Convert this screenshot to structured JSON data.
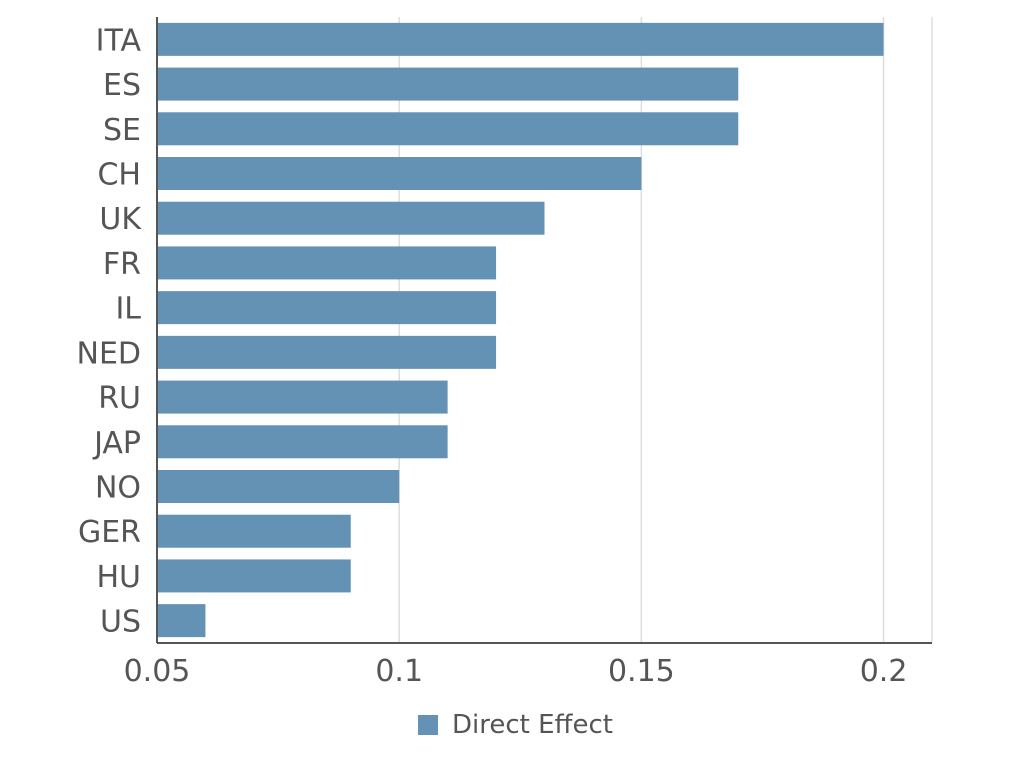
{
  "chart_data": {
    "type": "bar",
    "orientation": "horizontal",
    "categories": [
      "ITA",
      "ES",
      "SE",
      "CH",
      "UK",
      "FR",
      "IL",
      "NED",
      "RU",
      "JAP",
      "NO",
      "GER",
      "HU",
      "US"
    ],
    "series": [
      {
        "name": "Direct Effect",
        "values": [
          0.2,
          0.17,
          0.17,
          0.15,
          0.13,
          0.12,
          0.12,
          0.12,
          0.11,
          0.11,
          0.1,
          0.09,
          0.09,
          0.06
        ],
        "color": "#6392b4"
      }
    ],
    "title": "",
    "xlabel": "",
    "ylabel": "",
    "xlim": [
      0.05,
      0.21
    ],
    "x_ticks": [
      "0.05",
      "0.1",
      "0.15",
      "0.2"
    ],
    "x_tick_values": [
      0.05,
      0.1,
      0.15,
      0.2
    ],
    "grid": "vertical",
    "legend_position": "bottom"
  },
  "colors": {
    "bar": "#6392b4",
    "axis": "#555555",
    "grid": "#dddddd",
    "text": "#555555"
  }
}
